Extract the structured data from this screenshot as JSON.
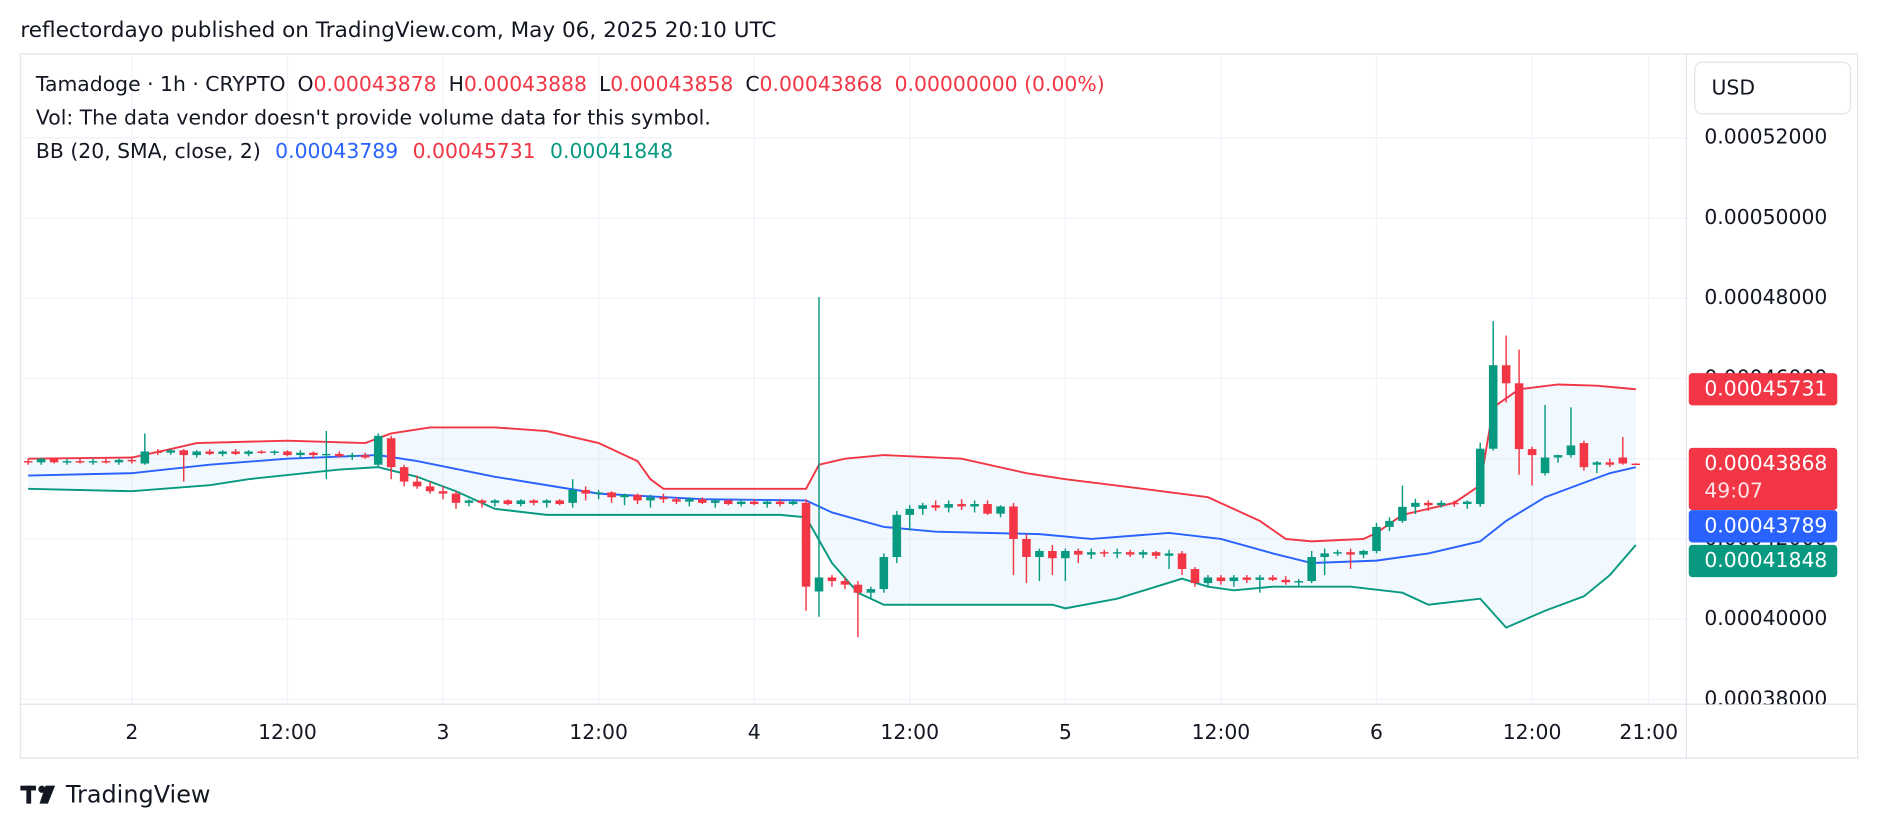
{
  "chart_data": {
    "type": "candlestick",
    "title": "reflectordayo published on TradingView.com, May 06, 2025 20:10 UTC",
    "symbol": "Tamadoge · 1h · CRYPTO",
    "ohlc_labels": [
      "O",
      "H",
      "L",
      "C"
    ],
    "change": "0.00000000 (0.00%)",
    "volume_note": "Vol: The data vendor doesn't provide volume data for this symbol.",
    "indicator": "BB (20, SMA, close, 2)",
    "currency": "USD",
    "countdown": "49:07",
    "brand": "TradingView",
    "up_color": "#089981",
    "down_color": "#f23645",
    "grid": true,
    "xlim": [
      -0.6,
      127.9
    ],
    "ylim": [
      0.0003788,
      0.0005409
    ],
    "xticks": [
      {
        "value": 8,
        "label": "2"
      },
      {
        "value": 20,
        "label": "12:00"
      },
      {
        "value": 32,
        "label": "3"
      },
      {
        "value": 44,
        "label": "12:00"
      },
      {
        "value": 56,
        "label": "4"
      },
      {
        "value": 68,
        "label": "12:00"
      },
      {
        "value": 80,
        "label": "5"
      },
      {
        "value": 92,
        "label": "12:00"
      },
      {
        "value": 104,
        "label": "6"
      },
      {
        "value": 116,
        "label": "12:00"
      },
      {
        "value": 125,
        "label": "21:00"
      }
    ],
    "yticks": [
      {
        "value": 0.00038,
        "label": "0.00038000"
      },
      {
        "value": 0.0004,
        "label": "0.00040000"
      },
      {
        "value": 0.00042,
        "label": "0.00042000"
      },
      {
        "value": 0.00044,
        "label": "0.00044000"
      },
      {
        "value": 0.00046,
        "label": "0.00046000"
      },
      {
        "value": 0.00048,
        "label": "0.00048000"
      },
      {
        "value": 0.0005,
        "label": "0.00050000"
      },
      {
        "value": 0.00052,
        "label": "0.00052000"
      }
    ],
    "ohlc": [
      [
        0.0004394,
        0.00044,
        0.0004385,
        0.0004391
      ],
      [
        0.0004391,
        0.0004403,
        0.0004385,
        0.00044
      ],
      [
        0.00044,
        0.0004403,
        0.0004388,
        0.0004391
      ],
      [
        0.0004391,
        0.00044,
        0.0004385,
        0.0004394
      ],
      [
        0.0004394,
        0.00044,
        0.0004388,
        0.0004391
      ],
      [
        0.0004391,
        0.00044,
        0.0004385,
        0.0004394
      ],
      [
        0.0004394,
        0.0004403,
        0.0004388,
        0.0004391
      ],
      [
        0.0004391,
        0.00044,
        0.0004385,
        0.0004397
      ],
      [
        0.0004397,
        0.0004403,
        0.0004388,
        0.0004394
      ],
      [
        0.0004388,
        0.0004463,
        0.0004385,
        0.0004418
      ],
      [
        0.0004418,
        0.0004424,
        0.0004409,
        0.0004415
      ],
      [
        0.0004415,
        0.0004424,
        0.000441,
        0.0004421
      ],
      [
        0.0004421,
        0.0004424,
        0.0004343,
        0.0004409
      ],
      [
        0.0004409,
        0.0004421,
        0.0004403,
        0.0004418
      ],
      [
        0.0004418,
        0.0004424,
        0.0004409,
        0.0004412
      ],
      [
        0.0004412,
        0.0004421,
        0.0004406,
        0.0004418
      ],
      [
        0.0004418,
        0.0004424,
        0.0004409,
        0.0004412
      ],
      [
        0.0004412,
        0.0004421,
        0.0004406,
        0.0004418
      ],
      [
        0.0004418,
        0.0004421,
        0.0004412,
        0.0004415
      ],
      [
        0.0004415,
        0.0004421,
        0.0004409,
        0.0004418
      ],
      [
        0.0004418,
        0.0004421,
        0.0004406,
        0.0004409
      ],
      [
        0.0004409,
        0.0004421,
        0.0004403,
        0.0004415
      ],
      [
        0.0004415,
        0.0004418,
        0.00044,
        0.0004409
      ],
      [
        0.0004409,
        0.0004469,
        0.0004349,
        0.0004412
      ],
      [
        0.0004412,
        0.0004418,
        0.0004403,
        0.0004406
      ],
      [
        0.0004406,
        0.0004415,
        0.0004397,
        0.0004409
      ],
      [
        0.0004409,
        0.0004415,
        0.00044,
        0.0004403
      ],
      [
        0.0004385,
        0.0004463,
        0.0004379,
        0.0004457
      ],
      [
        0.0004451,
        0.0004457,
        0.0004349,
        0.0004379
      ],
      [
        0.0004379,
        0.0004385,
        0.0004331,
        0.0004343
      ],
      [
        0.0004343,
        0.0004358,
        0.0004325,
        0.0004331
      ],
      [
        0.0004331,
        0.0004343,
        0.0004313,
        0.0004319
      ],
      [
        0.0004319,
        0.0004331,
        0.0004299,
        0.0004313
      ],
      [
        0.0004313,
        0.0004319,
        0.0004275,
        0.000429
      ],
      [
        0.000429,
        0.0004299,
        0.0004281,
        0.0004296
      ],
      [
        0.0004296,
        0.0004299,
        0.0004278,
        0.000429
      ],
      [
        0.000429,
        0.0004299,
        0.0004281,
        0.0004296
      ],
      [
        0.0004296,
        0.0004299,
        0.0004284,
        0.0004287
      ],
      [
        0.0004287,
        0.0004299,
        0.0004281,
        0.0004296
      ],
      [
        0.0004296,
        0.0004299,
        0.0004284,
        0.000429
      ],
      [
        0.000429,
        0.0004299,
        0.0004278,
        0.0004296
      ],
      [
        0.0004296,
        0.0004299,
        0.0004284,
        0.0004287
      ],
      [
        0.000429,
        0.0004349,
        0.0004278,
        0.0004322
      ],
      [
        0.0004322,
        0.0004331,
        0.0004296,
        0.0004313
      ],
      [
        0.0004313,
        0.0004322,
        0.0004299,
        0.0004316
      ],
      [
        0.0004316,
        0.0004319,
        0.000429,
        0.0004304
      ],
      [
        0.0004304,
        0.0004313,
        0.0004284,
        0.000431
      ],
      [
        0.000431,
        0.0004313,
        0.0004287,
        0.0004296
      ],
      [
        0.0004296,
        0.000431,
        0.0004278,
        0.0004304
      ],
      [
        0.0004304,
        0.0004313,
        0.000429,
        0.0004299
      ],
      [
        0.0004299,
        0.0004304,
        0.0004287,
        0.0004293
      ],
      [
        0.0004293,
        0.0004304,
        0.0004281,
        0.0004299
      ],
      [
        0.0004299,
        0.0004304,
        0.0004287,
        0.000429
      ],
      [
        0.000429,
        0.0004299,
        0.0004278,
        0.0004296
      ],
      [
        0.0004296,
        0.0004299,
        0.0004284,
        0.0004287
      ],
      [
        0.0004287,
        0.0004299,
        0.0004281,
        0.0004293
      ],
      [
        0.0004293,
        0.0004299,
        0.0004284,
        0.0004287
      ],
      [
        0.0004287,
        0.0004296,
        0.0004278,
        0.0004293
      ],
      [
        0.0004293,
        0.0004299,
        0.0004281,
        0.0004287
      ],
      [
        0.0004287,
        0.0004299,
        0.0004284,
        0.0004293
      ],
      [
        0.000429,
        0.0004299,
        0.0004021,
        0.0004081
      ],
      [
        0.0004069,
        0.0004803,
        0.0004006,
        0.0004104
      ],
      [
        0.0004104,
        0.000411,
        0.0004081,
        0.0004095
      ],
      [
        0.0004095,
        0.0004104,
        0.0004075,
        0.0004086
      ],
      [
        0.0004086,
        0.0004095,
        0.0003955,
        0.0004066
      ],
      [
        0.0004066,
        0.0004081,
        0.0004051,
        0.0004075
      ],
      [
        0.0004075,
        0.0004164,
        0.0004066,
        0.0004155
      ],
      [
        0.0004155,
        0.000427,
        0.000414,
        0.000426
      ],
      [
        0.000426,
        0.0004284,
        0.0004221,
        0.0004275
      ],
      [
        0.0004275,
        0.000429,
        0.000426,
        0.0004284
      ],
      [
        0.0004284,
        0.0004296,
        0.000427,
        0.0004278
      ],
      [
        0.0004278,
        0.0004296,
        0.0004266,
        0.0004287
      ],
      [
        0.0004287,
        0.0004299,
        0.0004272,
        0.0004281
      ],
      [
        0.0004281,
        0.0004296,
        0.0004266,
        0.0004287
      ],
      [
        0.0004287,
        0.0004296,
        0.000426,
        0.0004263
      ],
      [
        0.0004263,
        0.0004284,
        0.0004254,
        0.0004281
      ],
      [
        0.0004281,
        0.000429,
        0.000411,
        0.00042
      ],
      [
        0.00042,
        0.0004212,
        0.000409,
        0.0004155
      ],
      [
        0.0004155,
        0.0004176,
        0.0004095,
        0.000417
      ],
      [
        0.000417,
        0.0004185,
        0.000411,
        0.0004152
      ],
      [
        0.0004152,
        0.0004176,
        0.0004095,
        0.000417
      ],
      [
        0.000417,
        0.0004176,
        0.000414,
        0.0004161
      ],
      [
        0.0004161,
        0.0004176,
        0.000415,
        0.0004167
      ],
      [
        0.0004167,
        0.0004173,
        0.0004155,
        0.0004164
      ],
      [
        0.0004164,
        0.0004176,
        0.0004152,
        0.0004167
      ],
      [
        0.0004167,
        0.0004173,
        0.0004155,
        0.0004161
      ],
      [
        0.0004161,
        0.0004173,
        0.0004152,
        0.0004167
      ],
      [
        0.0004167,
        0.000417,
        0.000415,
        0.0004158
      ],
      [
        0.0004158,
        0.0004173,
        0.0004125,
        0.0004164
      ],
      [
        0.0004164,
        0.000417,
        0.000411,
        0.0004125
      ],
      [
        0.0004125,
        0.000413,
        0.0004081,
        0.000409
      ],
      [
        0.000409,
        0.000411,
        0.000408,
        0.0004104
      ],
      [
        0.0004104,
        0.000411,
        0.0004086,
        0.0004095
      ],
      [
        0.0004095,
        0.000411,
        0.0004081,
        0.0004104
      ],
      [
        0.0004104,
        0.000411,
        0.000409,
        0.0004098
      ],
      [
        0.0004098,
        0.000411,
        0.0004066,
        0.0004104
      ],
      [
        0.0004104,
        0.000411,
        0.0004095,
        0.0004098
      ],
      [
        0.0004098,
        0.0004107,
        0.0004086,
        0.0004092
      ],
      [
        0.0004092,
        0.00041,
        0.0004081,
        0.0004095
      ],
      [
        0.0004095,
        0.000417,
        0.000409,
        0.0004155
      ],
      [
        0.0004155,
        0.0004176,
        0.000411,
        0.0004164
      ],
      [
        0.0004164,
        0.0004173,
        0.0004158,
        0.0004167
      ],
      [
        0.0004167,
        0.0004176,
        0.0004125,
        0.0004161
      ],
      [
        0.0004161,
        0.0004173,
        0.0004152,
        0.000417
      ],
      [
        0.000417,
        0.000424,
        0.0004164,
        0.000423
      ],
      [
        0.000423,
        0.0004254,
        0.000422,
        0.0004245
      ],
      [
        0.0004245,
        0.0004333,
        0.000424,
        0.000428
      ],
      [
        0.000428,
        0.00043,
        0.0004262,
        0.000429
      ],
      [
        0.000429,
        0.0004296,
        0.000427,
        0.0004284
      ],
      [
        0.0004284,
        0.0004296,
        0.0004278,
        0.000429
      ],
      [
        0.000429,
        0.0004296,
        0.000428,
        0.0004287
      ],
      [
        0.0004287,
        0.0004296,
        0.0004275,
        0.0004293
      ],
      [
        0.0004287,
        0.000444,
        0.000428,
        0.0004425
      ],
      [
        0.0004425,
        0.0004743,
        0.000442,
        0.0004633
      ],
      [
        0.0004633,
        0.0004707,
        0.000454,
        0.0004588
      ],
      [
        0.0004588,
        0.0004672,
        0.000436,
        0.0004424
      ],
      [
        0.0004424,
        0.000443,
        0.0004333,
        0.0004409
      ],
      [
        0.0004364,
        0.0004534,
        0.0004358,
        0.0004403
      ],
      [
        0.0004403,
        0.000441,
        0.000439,
        0.0004409
      ],
      [
        0.0004409,
        0.0004528,
        0.0004403,
        0.0004433
      ],
      [
        0.0004439,
        0.0004445,
        0.000437,
        0.0004379
      ],
      [
        0.0004385,
        0.0004394,
        0.0004364,
        0.0004391
      ],
      [
        0.0004391,
        0.00044,
        0.0004379,
        0.0004385
      ],
      [
        0.0004403,
        0.0004454,
        0.0004385,
        0.0004388
      ],
      [
        0.00043878,
        0.00043888,
        0.00043858,
        0.00043868
      ]
    ],
    "bands": {
      "basis": {
        "color": "#2962ff",
        "x": [
          0,
          8,
          14,
          20,
          27,
          30,
          36,
          44,
          52,
          60,
          62,
          66,
          70,
          78,
          82,
          88,
          92,
          96,
          99,
          104,
          108,
          112,
          114,
          117,
          120,
          122,
          124
        ],
        "values": [
          0.0004358,
          0.0004364,
          0.0004385,
          0.00044,
          0.0004409,
          0.0004394,
          0.0004355,
          0.0004313,
          0.0004299,
          0.0004296,
          0.0004266,
          0.000423,
          0.0004218,
          0.0004212,
          0.00042,
          0.0004215,
          0.00042,
          0.0004164,
          0.000414,
          0.0004146,
          0.0004164,
          0.0004194,
          0.0004245,
          0.0004304,
          0.000434,
          0.0004364,
          0.00043789
        ]
      },
      "upper": {
        "color": "#f23645",
        "x": [
          0,
          8,
          11,
          13,
          20,
          26,
          28,
          31,
          36,
          40,
          44,
          46,
          47,
          48,
          49,
          60,
          61,
          63,
          66,
          72,
          77,
          80,
          86,
          91,
          95,
          97,
          99,
          103,
          104,
          106,
          110,
          112,
          113,
          115,
          118,
          121,
          124
        ],
        "values": [
          0.00044,
          0.0004403,
          0.0004424,
          0.0004439,
          0.0004445,
          0.0004439,
          0.0004463,
          0.0004478,
          0.0004478,
          0.0004469,
          0.0004439,
          0.0004409,
          0.0004394,
          0.0004349,
          0.0004325,
          0.0004325,
          0.0004385,
          0.00044,
          0.0004409,
          0.00044,
          0.0004364,
          0.0004349,
          0.0004325,
          0.0004304,
          0.0004245,
          0.00042,
          0.0004194,
          0.00042,
          0.0004215,
          0.000426,
          0.000429,
          0.0004334,
          0.0004528,
          0.0004573,
          0.0004585,
          0.0004582,
          0.00045731
        ]
      },
      "lower": {
        "color": "#089981",
        "x": [
          0,
          8,
          14,
          17,
          24,
          27,
          30,
          33,
          36,
          40,
          58,
          60,
          62,
          64,
          66,
          74,
          79,
          80,
          84,
          87,
          89,
          91,
          93,
          96,
          102,
          106,
          108,
          112,
          113,
          114,
          117,
          120,
          122,
          124
        ],
        "values": [
          0.0004325,
          0.0004319,
          0.0004334,
          0.0004349,
          0.0004373,
          0.0004379,
          0.0004355,
          0.0004319,
          0.0004275,
          0.000426,
          0.000426,
          0.0004254,
          0.000414,
          0.0004066,
          0.0004036,
          0.0004036,
          0.0004036,
          0.0004027,
          0.0004051,
          0.0004081,
          0.0004101,
          0.0004081,
          0.0004072,
          0.0004081,
          0.0004081,
          0.0004066,
          0.0004036,
          0.0004051,
          0.0004015,
          0.0003979,
          0.0004021,
          0.0004057,
          0.000411,
          0.00041848
        ]
      }
    }
  }
}
